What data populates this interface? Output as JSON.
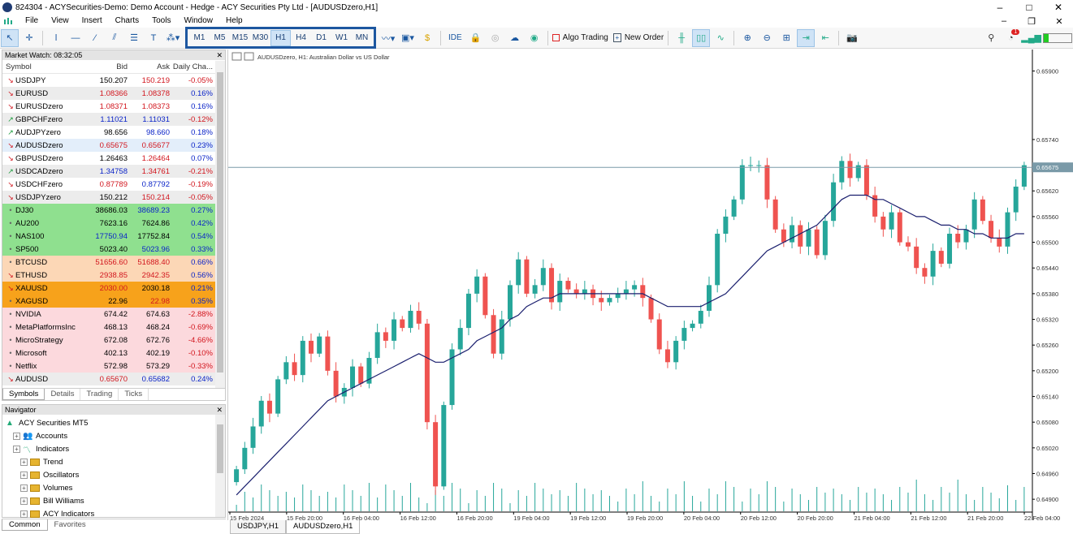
{
  "window": {
    "title": "824304 - ACYSecurities-Demo: Demo Account - Hedge - ACY Securities Pty Ltd - [AUDUSDzero,H1]",
    "minimize": "–",
    "maximize": "□",
    "close": "✕"
  },
  "menu": [
    "File",
    "View",
    "Insert",
    "Charts",
    "Tools",
    "Window",
    "Help"
  ],
  "menu_controls": {
    "minimize": "–",
    "restore": "❐",
    "close": "✕"
  },
  "toolbar": {
    "timeframes": [
      "M1",
      "M5",
      "M15",
      "M30",
      "H1",
      "H4",
      "D1",
      "W1",
      "MN"
    ],
    "selected_timeframe": "H1",
    "ide": "IDE",
    "algo_trading": "Algo Trading",
    "new_order": "New Order",
    "notif_count": "1"
  },
  "market_watch": {
    "title": "Market Watch: 08:32:05",
    "headers": {
      "symbol": "Symbol",
      "bid": "Bid",
      "ask": "Ask",
      "change": "Daily Cha..."
    },
    "rows": [
      {
        "sym": "USDJPY",
        "bid": "150.207",
        "ask": "150.219",
        "chg": "-0.05%",
        "dir": "down",
        "bg": "#ffffff",
        "bc": "#000000",
        "ac": "#d2161e",
        "cc": "#d2161e"
      },
      {
        "sym": "EURUSD",
        "bid": "1.08366",
        "ask": "1.08378",
        "chg": "0.16%",
        "dir": "down",
        "bg": "#ececec",
        "bc": "#d2161e",
        "ac": "#d2161e",
        "cc": "#0b24c8"
      },
      {
        "sym": "EURUSDzero",
        "bid": "1.08371",
        "ask": "1.08373",
        "chg": "0.16%",
        "dir": "down",
        "bg": "#ffffff",
        "bc": "#d2161e",
        "ac": "#d2161e",
        "cc": "#0b24c8"
      },
      {
        "sym": "GBPCHFzero",
        "bid": "1.11021",
        "ask": "1.11031",
        "chg": "-0.12%",
        "dir": "up",
        "bg": "#ececec",
        "bc": "#0b24c8",
        "ac": "#0b24c8",
        "cc": "#d2161e"
      },
      {
        "sym": "AUDJPYzero",
        "bid": "98.656",
        "ask": "98.660",
        "chg": "0.18%",
        "dir": "up",
        "bg": "#ffffff",
        "bc": "#000000",
        "ac": "#0b24c8",
        "cc": "#0b24c8"
      },
      {
        "sym": "AUDUSDzero",
        "bid": "0.65675",
        "ask": "0.65677",
        "chg": "0.23%",
        "dir": "down",
        "bg": "#e3eefa",
        "bc": "#d2161e",
        "ac": "#d2161e",
        "cc": "#0b24c8"
      },
      {
        "sym": "GBPUSDzero",
        "bid": "1.26463",
        "ask": "1.26464",
        "chg": "0.07%",
        "dir": "down",
        "bg": "#ffffff",
        "bc": "#000000",
        "ac": "#d2161e",
        "cc": "#0b24c8"
      },
      {
        "sym": "USDCADzero",
        "bid": "1.34758",
        "ask": "1.34761",
        "chg": "-0.21%",
        "dir": "up",
        "bg": "#ececec",
        "bc": "#0b24c8",
        "ac": "#d2161e",
        "cc": "#d2161e"
      },
      {
        "sym": "USDCHFzero",
        "bid": "0.87789",
        "ask": "0.87792",
        "chg": "-0.19%",
        "dir": "down",
        "bg": "#ffffff",
        "bc": "#d2161e",
        "ac": "#0b24c8",
        "cc": "#d2161e"
      },
      {
        "sym": "USDJPYzero",
        "bid": "150.212",
        "ask": "150.214",
        "chg": "-0.05%",
        "dir": "down",
        "bg": "#ececec",
        "bc": "#000000",
        "ac": "#d2161e",
        "cc": "#d2161e"
      },
      {
        "sym": "DJ30",
        "bid": "38686.03",
        "ask": "38689.23",
        "chg": "0.27%",
        "dir": "dot",
        "bg": "#8fe08f",
        "bc": "#000000",
        "ac": "#0b24c8",
        "cc": "#0b24c8"
      },
      {
        "sym": "AU200",
        "bid": "7623.16",
        "ask": "7624.86",
        "chg": "0.42%",
        "dir": "dot",
        "bg": "#8fe08f",
        "bc": "#000000",
        "ac": "#000000",
        "cc": "#0b24c8"
      },
      {
        "sym": "NAS100",
        "bid": "17750.94",
        "ask": "17752.84",
        "chg": "0.54%",
        "dir": "dot",
        "bg": "#8fe08f",
        "bc": "#0b24c8",
        "ac": "#000000",
        "cc": "#0b24c8"
      },
      {
        "sym": "SP500",
        "bid": "5023.40",
        "ask": "5023.96",
        "chg": "0.33%",
        "dir": "dot",
        "bg": "#8fe08f",
        "bc": "#000000",
        "ac": "#0b24c8",
        "cc": "#0b24c8"
      },
      {
        "sym": "BTCUSD",
        "bid": "51656.60",
        "ask": "51688.40",
        "chg": "0.66%",
        "dir": "dot",
        "bg": "#fcd7b6",
        "bc": "#d2161e",
        "ac": "#d2161e",
        "cc": "#0b24c8"
      },
      {
        "sym": "ETHUSD",
        "bid": "2938.85",
        "ask": "2942.35",
        "chg": "0.56%",
        "dir": "down",
        "bg": "#fcd7b6",
        "bc": "#d2161e",
        "ac": "#d2161e",
        "cc": "#0b24c8"
      },
      {
        "sym": "XAUUSD",
        "bid": "2030.00",
        "ask": "2030.18",
        "chg": "0.21%",
        "dir": "down",
        "bg": "#f7a21b",
        "bc": "#d2161e",
        "ac": "#000000",
        "cc": "#0b24c8"
      },
      {
        "sym": "XAGUSD",
        "bid": "22.96",
        "ask": "22.98",
        "chg": "0.35%",
        "dir": "dot",
        "bg": "#f7a21b",
        "bc": "#000000",
        "ac": "#d2161e",
        "cc": "#0b24c8"
      },
      {
        "sym": "NVIDIA",
        "bid": "674.42",
        "ask": "674.63",
        "chg": "-2.88%",
        "dir": "dot",
        "bg": "#fcd9dd",
        "bc": "#000000",
        "ac": "#000000",
        "cc": "#d2161e"
      },
      {
        "sym": "MetaPlatformsInc",
        "bid": "468.13",
        "ask": "468.24",
        "chg": "-0.69%",
        "dir": "dot",
        "bg": "#fcd9dd",
        "bc": "#000000",
        "ac": "#000000",
        "cc": "#d2161e"
      },
      {
        "sym": "MicroStrategy",
        "bid": "672.08",
        "ask": "672.76",
        "chg": "-4.66%",
        "dir": "dot",
        "bg": "#fcd9dd",
        "bc": "#000000",
        "ac": "#000000",
        "cc": "#d2161e"
      },
      {
        "sym": "Microsoft",
        "bid": "402.13",
        "ask": "402.19",
        "chg": "-0.10%",
        "dir": "dot",
        "bg": "#fcd9dd",
        "bc": "#000000",
        "ac": "#000000",
        "cc": "#d2161e"
      },
      {
        "sym": "Netflix",
        "bid": "572.98",
        "ask": "573.29",
        "chg": "-0.33%",
        "dir": "dot",
        "bg": "#fcd9dd",
        "bc": "#000000",
        "ac": "#000000",
        "cc": "#d2161e"
      },
      {
        "sym": "AUDUSD",
        "bid": "0.65670",
        "ask": "0.65682",
        "chg": "0.24%",
        "dir": "down",
        "bg": "#ececec",
        "bc": "#d2161e",
        "ac": "#0b24c8",
        "cc": "#0b24c8"
      }
    ],
    "tabs": [
      "Symbols",
      "Details",
      "Trading",
      "Ticks"
    ],
    "active_tab": "Symbols"
  },
  "navigator": {
    "title": "Navigator",
    "items": [
      {
        "label": "ACY Securities MT5",
        "level": 0,
        "icon": "mt5-icon"
      },
      {
        "label": "Accounts",
        "level": 1,
        "icon": "accounts-icon"
      },
      {
        "label": "Indicators",
        "level": 1,
        "icon": "indicators-icon"
      },
      {
        "label": "Trend",
        "level": 2,
        "icon": "folder-icon"
      },
      {
        "label": "Oscillators",
        "level": 2,
        "icon": "folder-icon"
      },
      {
        "label": "Volumes",
        "level": 2,
        "icon": "folder-icon"
      },
      {
        "label": "Bill Williams",
        "level": 2,
        "icon": "folder-icon"
      },
      {
        "label": "ACY Indicators",
        "level": 2,
        "icon": "folder-icon"
      }
    ],
    "tabs": [
      "Common",
      "Favorites"
    ],
    "active_tab": "Common"
  },
  "chart_tabs": [
    "USDJPY,H1",
    "AUDUSDzero,H1"
  ],
  "active_chart_tab": "AUDUSDzero,H1",
  "chart_data": {
    "type": "candlestick",
    "title": "AUDUSDzero, H1:  Australian Dollar vs US Dollar",
    "current_price": "0.65675",
    "y_ticks": [
      "0.65900",
      "0.65740",
      "0.65620",
      "0.65560",
      "0.65500",
      "0.65440",
      "0.65380",
      "0.65320",
      "0.65260",
      "0.65200",
      "0.65140",
      "0.65080",
      "0.65020",
      "0.64960",
      "0.64900"
    ],
    "x_ticks": [
      "15 Feb 2024",
      "15 Feb 20:00",
      "16 Feb 04:00",
      "16 Feb 12:00",
      "16 Feb 20:00",
      "19 Feb 04:00",
      "19 Feb 12:00",
      "19 Feb 20:00",
      "20 Feb 04:00",
      "20 Feb 12:00",
      "20 Feb 20:00",
      "21 Feb 04:00",
      "21 Feb 12:00",
      "21 Feb 20:00",
      "22 Feb 04:00"
    ],
    "closes": [
      0.6497,
      0.6502,
      0.6507,
      0.6513,
      0.651,
      0.6518,
      0.6522,
      0.6519,
      0.6527,
      0.6524,
      0.6528,
      0.652,
      0.6514,
      0.6516,
      0.6521,
      0.6517,
      0.6523,
      0.6529,
      0.6527,
      0.6532,
      0.653,
      0.6534,
      0.6531,
      0.6508,
      0.6493,
      0.6512,
      0.6525,
      0.653,
      0.6538,
      0.6542,
      0.6533,
      0.6524,
      0.6532,
      0.654,
      0.6546,
      0.6538,
      0.654,
      0.6544,
      0.6536,
      0.6541,
      0.6539,
      0.6538,
      0.6539,
      0.6537,
      0.6536,
      0.6537,
      0.6538,
      0.6539,
      0.654,
      0.6537,
      0.6532,
      0.6525,
      0.6522,
      0.6527,
      0.653,
      0.6531,
      0.6534,
      0.654,
      0.6552,
      0.6556,
      0.656,
      0.6568,
      0.6568,
      0.6568,
      0.656,
      0.6553,
      0.655,
      0.6554,
      0.6549,
      0.6553,
      0.6547,
      0.6555,
      0.6564,
      0.6569,
      0.6565,
      0.6568,
      0.6561,
      0.6556,
      0.6553,
      0.6557,
      0.655,
      0.6549,
      0.6544,
      0.6542,
      0.6548,
      0.6545,
      0.6552,
      0.655,
      0.6553,
      0.656,
      0.6555,
      0.6551,
      0.6549,
      0.6557,
      0.6563,
      0.6568
    ],
    "ma": [
      0.6491,
      0.6493,
      0.6495,
      0.6497,
      0.6499,
      0.6501,
      0.6503,
      0.6505,
      0.6507,
      0.6509,
      0.6511,
      0.6513,
      0.6514,
      0.6515,
      0.6516,
      0.6517,
      0.6518,
      0.6519,
      0.652,
      0.6521,
      0.6522,
      0.6523,
      0.6524,
      0.6523,
      0.6522,
      0.6522,
      0.6523,
      0.6524,
      0.6525,
      0.6527,
      0.6528,
      0.6529,
      0.653,
      0.6532,
      0.6533,
      0.6535,
      0.6536,
      0.6537,
      0.6537,
      0.6538,
      0.6538,
      0.6538,
      0.6538,
      0.6538,
      0.6538,
      0.6538,
      0.6538,
      0.6538,
      0.6538,
      0.6538,
      0.6537,
      0.6536,
      0.6535,
      0.6535,
      0.6535,
      0.6535,
      0.6535,
      0.6536,
      0.6537,
      0.6538,
      0.654,
      0.6542,
      0.6544,
      0.6546,
      0.6548,
      0.6549,
      0.655,
      0.6551,
      0.6552,
      0.6553,
      0.6554,
      0.6556,
      0.6558,
      0.656,
      0.6561,
      0.6561,
      0.6561,
      0.656,
      0.656,
      0.6559,
      0.6558,
      0.6557,
      0.6556,
      0.6556,
      0.6555,
      0.6554,
      0.6554,
      0.6553,
      0.6553,
      0.6552,
      0.6552,
      0.6551,
      0.6551,
      0.6551,
      0.6552,
      0.6552
    ],
    "colors": {
      "bull": "#26a69a",
      "bear": "#ef5350",
      "ma": "#1a1f6e",
      "price_line": "#7a9aa8",
      "volume": "#26a69a"
    }
  }
}
